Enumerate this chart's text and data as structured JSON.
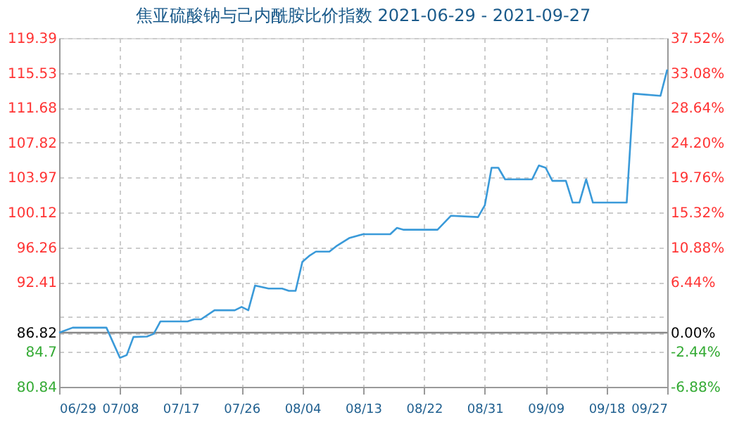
{
  "chart_data": {
    "type": "line",
    "title": "焦亚硫酸钠与己内酰胺比价指数 2021-06-29 - 2021-09-27",
    "x": [
      "2021-06-29",
      "2021-07-01",
      "2021-07-06",
      "2021-07-08",
      "2021-07-09",
      "2021-07-10",
      "2021-07-12",
      "2021-07-13",
      "2021-07-14",
      "2021-07-18",
      "2021-07-19",
      "2021-07-20",
      "2021-07-22",
      "2021-07-25",
      "2021-07-26",
      "2021-07-27",
      "2021-07-28",
      "2021-07-30",
      "2021-08-01",
      "2021-08-02",
      "2021-08-03",
      "2021-08-04",
      "2021-08-05",
      "2021-08-06",
      "2021-08-08",
      "2021-08-09",
      "2021-08-11",
      "2021-08-13",
      "2021-08-17",
      "2021-08-18",
      "2021-08-19",
      "2021-08-24",
      "2021-08-26",
      "2021-08-30",
      "2021-08-31",
      "2021-09-01",
      "2021-09-02",
      "2021-09-03",
      "2021-09-07",
      "2021-09-08",
      "2021-09-09",
      "2021-09-10",
      "2021-09-12",
      "2021-09-13",
      "2021-09-14",
      "2021-09-15",
      "2021-09-16",
      "2021-09-21",
      "2021-09-22",
      "2021-09-26",
      "2021-09-27"
    ],
    "series": [
      {
        "color": "#3a9ad9",
        "values": [
          86.82,
          87.38,
          87.38,
          84.05,
          84.35,
          86.35,
          86.4,
          86.7,
          88.07,
          88.07,
          88.3,
          88.3,
          89.3,
          89.3,
          89.67,
          89.3,
          92.04,
          91.7,
          91.7,
          91.45,
          91.45,
          94.66,
          95.3,
          95.78,
          95.78,
          96.37,
          97.3,
          97.71,
          97.71,
          98.4,
          98.2,
          98.2,
          99.75,
          99.6,
          100.9,
          105.05,
          105.05,
          103.77,
          103.77,
          105.3,
          105.05,
          103.6,
          103.6,
          101.2,
          101.2,
          103.77,
          101.2,
          101.2,
          113.24,
          113.0,
          115.9
        ]
      }
    ],
    "xlim": [
      "2021-06-29",
      "2021-09-27"
    ],
    "xticks": [
      {
        "value": "2021-06-29",
        "label": "06/29"
      },
      {
        "value": "2021-07-08",
        "label": "07/08"
      },
      {
        "value": "2021-07-17",
        "label": "07/17"
      },
      {
        "value": "2021-07-26",
        "label": "07/26"
      },
      {
        "value": "2021-08-04",
        "label": "08/04"
      },
      {
        "value": "2021-08-13",
        "label": "08/13"
      },
      {
        "value": "2021-08-22",
        "label": "08/22"
      },
      {
        "value": "2021-08-31",
        "label": "08/31"
      },
      {
        "value": "2021-09-09",
        "label": "09/09"
      },
      {
        "value": "2021-09-18",
        "label": "09/18"
      },
      {
        "value": "2021-09-27",
        "label": "09/27"
      }
    ],
    "ylim": [
      80.84,
      119.39
    ],
    "yticks": [
      80.84,
      84.7,
      86.82,
      {
        "value": 88.55,
        "label": null
      },
      92.41,
      96.26,
      100.12,
      103.97,
      107.82,
      111.68,
      115.53,
      119.39
    ],
    "y2lim": [
      -6.88,
      37.52
    ],
    "y2ticks": [
      {
        "value": -6.88,
        "label": "-6.88%"
      },
      {
        "value": -2.44,
        "label": "-2.44%"
      },
      {
        "value": 0,
        "label": "0.00%"
      },
      {
        "value": 6.44,
        "label": "6.44%"
      },
      {
        "value": 10.88,
        "label": "10.88%"
      },
      {
        "value": 15.32,
        "label": "15.32%"
      },
      {
        "value": 19.76,
        "label": "19.76%"
      },
      {
        "value": 24.2,
        "label": "24.20%"
      },
      {
        "value": 28.64,
        "label": "28.64%"
      },
      {
        "value": 33.08,
        "label": "33.08%"
      },
      {
        "value": 37.52,
        "label": "37.52%"
      }
    ],
    "ref_lines": [
      {
        "axis": "y",
        "value": 86.82,
        "color": "#888888"
      }
    ],
    "grid": true,
    "legend": false,
    "line_style": "solid",
    "marker": "none"
  }
}
